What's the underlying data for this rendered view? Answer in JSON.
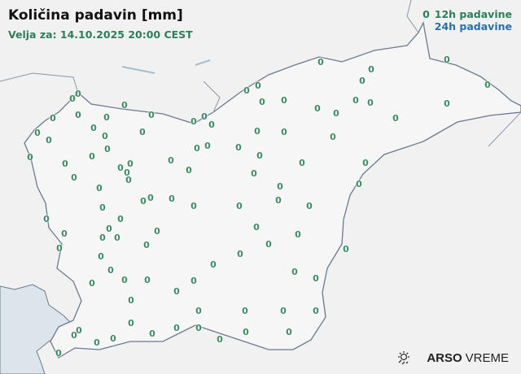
{
  "header": {
    "title": "Količina padavin [mm]",
    "valid_for": "Velja za: 14.10.2025 20:00 CEST"
  },
  "legend": {
    "symbol": "0",
    "items": [
      {
        "label": "12h padavine",
        "color": "#2e7d5b"
      },
      {
        "label": "24h padavine",
        "color": "#2a6fa8"
      }
    ]
  },
  "stations": {
    "period": "12h padavine",
    "unit": "mm",
    "values": [
      "0",
      "0",
      "0",
      "0",
      "0",
      "0",
      "0",
      "0",
      "0",
      "0",
      "0",
      "0",
      "0",
      "0",
      "0",
      "0",
      "0",
      "0",
      "0",
      "0",
      "0",
      "0",
      "0",
      "0",
      "0",
      "0",
      "0",
      "0",
      "0",
      "0",
      "0",
      "0",
      "0",
      "0",
      "0",
      "0",
      "0",
      "0",
      "0",
      "0",
      "0",
      "0",
      "0",
      "0",
      "0",
      "0",
      "0",
      "0",
      "0",
      "0",
      "0",
      "0",
      "0",
      "0",
      "0",
      "0",
      "0",
      "0",
      "0",
      "0",
      "0",
      "0",
      "0",
      "0",
      "0",
      "0",
      "0",
      "0",
      "0",
      "0",
      "0",
      "0",
      "0",
      "0",
      "0",
      "0",
      "0",
      "0",
      "0",
      "0",
      "0",
      "0",
      "0",
      "0",
      "0",
      "0",
      "0",
      "0",
      "0",
      "0",
      "0",
      "0",
      "0",
      "0",
      "0",
      "0",
      "0",
      "0",
      "0",
      "0",
      "0",
      "0",
      "0"
    ]
  },
  "colors": {
    "value_text": "#3d8a64",
    "border": "#6b7a8c",
    "sea": "#dde5ec",
    "land": "#f2f2f2"
  },
  "logo": {
    "brand": "ARSO",
    "product": "VREME",
    "icon": "sun-cloud-icon"
  }
}
